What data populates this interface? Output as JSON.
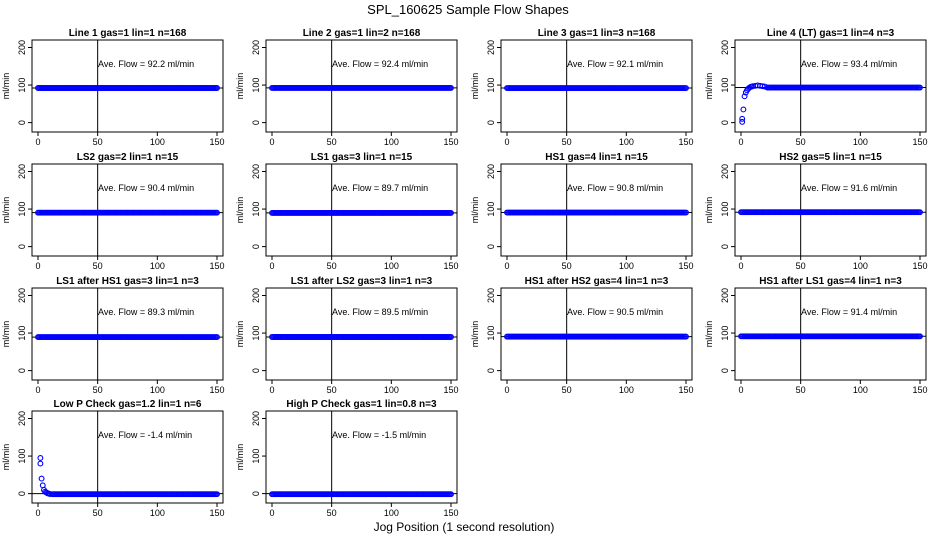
{
  "figure": {
    "title": "SPL_160625  Sample Flow Shapes",
    "xlabel": "Jog Position (1 second resolution)",
    "point_color": "#0000ff",
    "line_color": "#000000"
  },
  "chart_data": [
    {
      "type": "scatter",
      "title": "Line 1 gas=1 lin=1 n=168",
      "ylabel": "ml/min",
      "annotation": "Ave. Flow = 92.2  ml/min",
      "xlim": [
        0,
        150
      ],
      "ylim": [
        -25,
        220
      ],
      "xticks": [
        0,
        50,
        100,
        150
      ],
      "yticks": [
        0,
        100,
        200
      ],
      "vline_x": 50,
      "hline_y": [
        92.2
      ],
      "series": [
        {
          "name": "flow",
          "x_start": 0,
          "x_end": 150,
          "level": 92.2,
          "transient": []
        }
      ]
    },
    {
      "type": "scatter",
      "title": "Line 2 gas=1 lin=2 n=168",
      "ylabel": "ml/min",
      "annotation": "Ave. Flow = 92.4  ml/min",
      "xlim": [
        0,
        150
      ],
      "ylim": [
        -25,
        220
      ],
      "xticks": [
        0,
        50,
        100,
        150
      ],
      "yticks": [
        0,
        100,
        200
      ],
      "vline_x": 50,
      "hline_y": [
        92.4
      ],
      "series": [
        {
          "name": "flow",
          "x_start": 0,
          "x_end": 150,
          "level": 92.4,
          "transient": []
        }
      ]
    },
    {
      "type": "scatter",
      "title": "Line 3 gas=1 lin=3 n=168",
      "ylabel": "ml/min",
      "annotation": "Ave. Flow = 92.1  ml/min",
      "xlim": [
        0,
        150
      ],
      "ylim": [
        -25,
        220
      ],
      "xticks": [
        0,
        50,
        100,
        150
      ],
      "yticks": [
        0,
        100,
        200
      ],
      "vline_x": 50,
      "hline_y": [
        92.1
      ],
      "series": [
        {
          "name": "flow",
          "x_start": 0,
          "x_end": 150,
          "level": 92.1,
          "transient": []
        }
      ]
    },
    {
      "type": "scatter",
      "title": "Line 4 (LT) gas=1 lin=4 n=3",
      "ylabel": "ml/min",
      "annotation": "Ave. Flow = 93.4  ml/min",
      "xlim": [
        0,
        150
      ],
      "ylim": [
        -25,
        220
      ],
      "xticks": [
        0,
        50,
        100,
        150
      ],
      "yticks": [
        0,
        100,
        200
      ],
      "vline_x": 50,
      "hline_y": [
        93.4
      ],
      "series": [
        {
          "name": "flow",
          "x_start": 22,
          "x_end": 150,
          "level": 93.4,
          "transient": [
            [
              1,
              2
            ],
            [
              1,
              10
            ],
            [
              2,
              35
            ],
            [
              3,
              70
            ],
            [
              4,
              80
            ],
            [
              5,
              86
            ],
            [
              6,
              90
            ],
            [
              7,
              93
            ],
            [
              8,
              95
            ],
            [
              9,
              96
            ],
            [
              10,
              97
            ],
            [
              12,
              98
            ],
            [
              14,
              99
            ],
            [
              16,
              98
            ],
            [
              18,
              97
            ],
            [
              20,
              96
            ]
          ]
        }
      ]
    },
    {
      "type": "scatter",
      "title": "LS2 gas=2 lin=1 n=15",
      "ylabel": "ml/min",
      "annotation": "Ave. Flow = 90.4  ml/min",
      "xlim": [
        0,
        150
      ],
      "ylim": [
        -25,
        220
      ],
      "xticks": [
        0,
        50,
        100,
        150
      ],
      "yticks": [
        0,
        100,
        200
      ],
      "vline_x": 50,
      "hline_y": [
        90.4
      ],
      "series": [
        {
          "name": "flow",
          "x_start": 0,
          "x_end": 150,
          "level": 90.4,
          "transient": []
        }
      ]
    },
    {
      "type": "scatter",
      "title": "LS1 gas=3 lin=1 n=15",
      "ylabel": "ml/min",
      "annotation": "Ave. Flow = 89.7  ml/min",
      "xlim": [
        0,
        150
      ],
      "ylim": [
        -25,
        220
      ],
      "xticks": [
        0,
        50,
        100,
        150
      ],
      "yticks": [
        0,
        100,
        200
      ],
      "vline_x": 50,
      "hline_y": [
        89.7
      ],
      "series": [
        {
          "name": "flow",
          "x_start": 0,
          "x_end": 150,
          "level": 89.7,
          "transient": []
        }
      ]
    },
    {
      "type": "scatter",
      "title": "HS1 gas=4 lin=1 n=15",
      "ylabel": "ml/min",
      "annotation": "Ave. Flow = 90.8  ml/min",
      "xlim": [
        0,
        150
      ],
      "ylim": [
        -25,
        220
      ],
      "xticks": [
        0,
        50,
        100,
        150
      ],
      "yticks": [
        0,
        100,
        200
      ],
      "vline_x": 50,
      "hline_y": [
        90.8
      ],
      "series": [
        {
          "name": "flow",
          "x_start": 0,
          "x_end": 150,
          "level": 90.8,
          "transient": []
        }
      ]
    },
    {
      "type": "scatter",
      "title": "HS2 gas=5 lin=1 n=15",
      "ylabel": "ml/min",
      "annotation": "Ave. Flow = 91.6  ml/min",
      "xlim": [
        0,
        150
      ],
      "ylim": [
        -25,
        220
      ],
      "xticks": [
        0,
        50,
        100,
        150
      ],
      "yticks": [
        0,
        100,
        200
      ],
      "vline_x": 50,
      "hline_y": [
        91.6
      ],
      "series": [
        {
          "name": "flow",
          "x_start": 0,
          "x_end": 150,
          "level": 91.6,
          "transient": []
        }
      ]
    },
    {
      "type": "scatter",
      "title": "LS1 after HS1 gas=3 lin=1 n=3",
      "ylabel": "ml/min",
      "annotation": "Ave. Flow = 89.3  ml/min",
      "xlim": [
        0,
        150
      ],
      "ylim": [
        -25,
        220
      ],
      "xticks": [
        0,
        50,
        100,
        150
      ],
      "yticks": [
        0,
        100,
        200
      ],
      "vline_x": 50,
      "hline_y": [
        89.3
      ],
      "series": [
        {
          "name": "flow",
          "x_start": 0,
          "x_end": 150,
          "level": 89.3,
          "transient": []
        }
      ]
    },
    {
      "type": "scatter",
      "title": "LS1 after LS2 gas=3 lin=1 n=3",
      "ylabel": "ml/min",
      "annotation": "Ave. Flow = 89.5  ml/min",
      "xlim": [
        0,
        150
      ],
      "ylim": [
        -25,
        220
      ],
      "xticks": [
        0,
        50,
        100,
        150
      ],
      "yticks": [
        0,
        100,
        200
      ],
      "vline_x": 50,
      "hline_y": [
        89.5
      ],
      "series": [
        {
          "name": "flow",
          "x_start": 0,
          "x_end": 150,
          "level": 89.5,
          "transient": []
        }
      ]
    },
    {
      "type": "scatter",
      "title": "HS1 after HS2 gas=4 lin=1 n=3",
      "ylabel": "ml/min",
      "annotation": "Ave. Flow = 90.5  ml/min",
      "xlim": [
        0,
        150
      ],
      "ylim": [
        -25,
        220
      ],
      "xticks": [
        0,
        50,
        100,
        150
      ],
      "yticks": [
        0,
        100,
        200
      ],
      "vline_x": 50,
      "hline_y": [
        90.5
      ],
      "series": [
        {
          "name": "flow",
          "x_start": 0,
          "x_end": 150,
          "level": 90.5,
          "transient": []
        }
      ]
    },
    {
      "type": "scatter",
      "title": "HS1 after LS1 gas=4 lin=1 n=3",
      "ylabel": "ml/min",
      "annotation": "Ave. Flow = 91.4  ml/min",
      "xlim": [
        0,
        150
      ],
      "ylim": [
        -25,
        220
      ],
      "xticks": [
        0,
        50,
        100,
        150
      ],
      "yticks": [
        0,
        100,
        200
      ],
      "vline_x": 50,
      "hline_y": [
        91.4
      ],
      "series": [
        {
          "name": "flow",
          "x_start": 0,
          "x_end": 150,
          "level": 91.4,
          "transient": []
        }
      ]
    },
    {
      "type": "scatter",
      "title": "Low P Check gas=1.2 lin=1 n=6",
      "ylabel": "ml/min",
      "annotation": "Ave. Flow = -1.4  ml/min",
      "xlim": [
        0,
        150
      ],
      "ylim": [
        -25,
        220
      ],
      "xticks": [
        0,
        50,
        100,
        150
      ],
      "yticks": [
        0,
        100,
        200
      ],
      "vline_x": 50,
      "hline_y": [
        0
      ],
      "series": [
        {
          "name": "flow",
          "x_start": 12,
          "x_end": 150,
          "level": -1.4,
          "transient": [
            [
              2,
              95
            ],
            [
              2,
              80
            ],
            [
              3,
              40
            ],
            [
              4,
              22
            ],
            [
              5,
              10
            ],
            [
              6,
              5
            ],
            [
              7,
              3
            ],
            [
              8,
              1
            ],
            [
              9,
              0
            ],
            [
              10,
              -1
            ]
          ]
        }
      ]
    },
    {
      "type": "scatter",
      "title": "High P Check gas=1 lin=0.8 n=3",
      "ylabel": "ml/min",
      "annotation": "Ave. Flow = -1.5  ml/min",
      "xlim": [
        0,
        150
      ],
      "ylim": [
        -25,
        220
      ],
      "xticks": [
        0,
        50,
        100,
        150
      ],
      "yticks": [
        0,
        100,
        200
      ],
      "vline_x": 50,
      "hline_y": [
        0
      ],
      "series": [
        {
          "name": "flow",
          "x_start": 0,
          "x_end": 150,
          "level": -1.5,
          "transient": []
        }
      ]
    }
  ]
}
